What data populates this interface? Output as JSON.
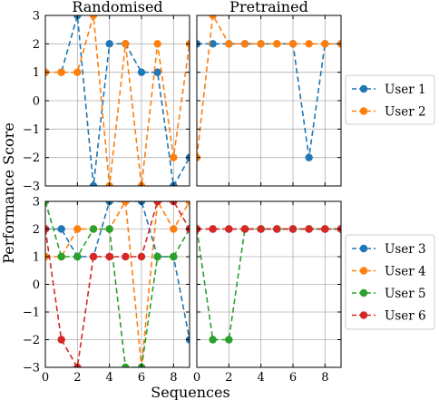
{
  "chart_data": {
    "type": "line",
    "ylabel": "Performance Score",
    "xlabel": "Sequences",
    "xlim": [
      0,
      9
    ],
    "ylim": [
      -3,
      3
    ],
    "x_ticks": [
      0,
      2,
      4,
      6,
      8
    ],
    "y_ticks": [
      -3,
      -2,
      -1,
      0,
      1,
      2,
      3
    ],
    "grid": true,
    "colors": {
      "User 1": "#1f77b4",
      "User 2": "#ff7f0e",
      "User 3": "#1f77b4",
      "User 4": "#ff7f0e",
      "User 5": "#2ca02c",
      "User 6": "#d62728"
    },
    "column_titles": [
      "Randomised",
      "Pretrained"
    ],
    "legends": [
      {
        "position": "right",
        "entries": [
          "User 1",
          "User 2"
        ]
      },
      {
        "position": "right",
        "entries": [
          "User 3",
          "User 4",
          "User 5",
          "User 6"
        ]
      }
    ],
    "panels": [
      {
        "row": 0,
        "col": 0,
        "title": "Randomised",
        "series": [
          {
            "name": "User 1",
            "x": [
              0,
              1,
              2,
              3,
              4,
              5,
              6,
              7,
              8,
              9
            ],
            "values": [
              1,
              1,
              3,
              -3,
              2,
              2,
              1,
              1,
              -3,
              -2
            ]
          },
          {
            "name": "User 2",
            "x": [
              0,
              1,
              2,
              3,
              4,
              5,
              6,
              7,
              8,
              9
            ],
            "values": [
              1,
              1,
              1,
              3,
              -3,
              2,
              -3,
              2,
              -2,
              2
            ]
          }
        ]
      },
      {
        "row": 0,
        "col": 1,
        "title": "Pretrained",
        "series": [
          {
            "name": "User 1",
            "x": [
              0,
              1,
              2,
              3,
              4,
              5,
              6,
              7,
              8,
              9
            ],
            "values": [
              2,
              2,
              2,
              2,
              2,
              2,
              2,
              -2,
              2,
              2
            ]
          },
          {
            "name": "User 2",
            "x": [
              0,
              1,
              2,
              3,
              4,
              5,
              6,
              7,
              8,
              9
            ],
            "values": [
              -2,
              3,
              2,
              2,
              2,
              2,
              2,
              2,
              2,
              2
            ]
          }
        ]
      },
      {
        "row": 1,
        "col": 0,
        "title": "",
        "series": [
          {
            "name": "User 3",
            "x": [
              0,
              1,
              2,
              3,
              4,
              5,
              6,
              7,
              8,
              9
            ],
            "values": [
              2,
              2,
              1,
              1,
              3,
              3,
              3,
              1,
              1,
              -2
            ]
          },
          {
            "name": "User 4",
            "x": [
              0,
              1,
              2,
              3,
              4,
              5,
              6,
              7,
              8,
              9
            ],
            "values": [
              1,
              1,
              2,
              2,
              2,
              3,
              -3,
              3,
              2,
              3
            ]
          },
          {
            "name": "User 5",
            "x": [
              0,
              1,
              2,
              3,
              4,
              5,
              6,
              7,
              8,
              9
            ],
            "values": [
              3,
              1,
              1,
              2,
              2,
              -3,
              -3,
              1,
              1,
              2
            ]
          },
          {
            "name": "User 6",
            "x": [
              0,
              1,
              2,
              3,
              4,
              5,
              6,
              7,
              8,
              9
            ],
            "values": [
              2,
              -2,
              -3,
              1,
              1,
              1,
              1,
              3,
              3,
              2
            ]
          }
        ]
      },
      {
        "row": 1,
        "col": 1,
        "title": "",
        "series": [
          {
            "name": "User 3",
            "x": [
              0,
              1,
              2,
              3,
              4,
              5,
              6,
              7,
              8,
              9
            ],
            "values": [
              2,
              2,
              2,
              2,
              2,
              2,
              2,
              2,
              2,
              2
            ]
          },
          {
            "name": "User 4",
            "x": [
              0,
              1,
              2,
              3,
              4,
              5,
              6,
              7,
              8,
              9
            ],
            "values": [
              2,
              2,
              2,
              2,
              2,
              2,
              2,
              2,
              2,
              2
            ]
          },
          {
            "name": "User 5",
            "x": [
              0,
              1,
              2,
              3,
              4,
              5,
              6,
              7,
              8,
              9
            ],
            "values": [
              2,
              -2,
              -2,
              2,
              2,
              2,
              2,
              2,
              2,
              2
            ]
          },
          {
            "name": "User 6",
            "x": [
              0,
              1,
              2,
              3,
              4,
              5,
              6,
              7,
              8,
              9
            ],
            "values": [
              2,
              2,
              2,
              2,
              2,
              2,
              2,
              2,
              2,
              2
            ]
          }
        ]
      }
    ]
  }
}
